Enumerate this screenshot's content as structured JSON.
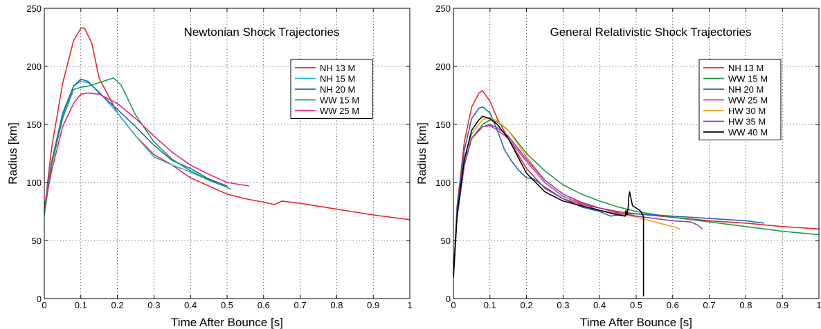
{
  "chart_data": [
    {
      "type": "line",
      "title": "Newtonian Shock Trajectories",
      "xlabel": "Time After Bounce [s]",
      "ylabel": "Radius [km]",
      "xlim": [
        0,
        1
      ],
      "ylim": [
        0,
        250
      ],
      "xticks": [
        "0",
        "0.1",
        "0.2",
        "0.3",
        "0.4",
        "0.5",
        "0.6",
        "0.7",
        "0.8",
        "0.9",
        "1"
      ],
      "yticks": [
        "0",
        "50",
        "100",
        "150",
        "200",
        "250"
      ],
      "grid": true,
      "legend_position": "upper right",
      "series": [
        {
          "name": "NH 13 M",
          "color": "#e8262a",
          "x": [
            0.0,
            0.02,
            0.05,
            0.08,
            0.1,
            0.11,
            0.13,
            0.15,
            0.18,
            0.2,
            0.25,
            0.3,
            0.35,
            0.4,
            0.45,
            0.5,
            0.55,
            0.6,
            0.63,
            0.65,
            0.7,
            0.8,
            0.9,
            1.0
          ],
          "y": [
            75,
            130,
            185,
            222,
            233,
            233,
            220,
            190,
            172,
            160,
            140,
            124,
            115,
            104,
            97,
            90,
            86,
            83,
            81,
            84,
            82,
            77,
            72,
            68
          ]
        },
        {
          "name": "NH 15 M",
          "color": "#1fb2e6",
          "x": [
            0.0,
            0.02,
            0.05,
            0.08,
            0.1,
            0.12,
            0.15,
            0.2,
            0.25,
            0.3,
            0.35,
            0.4,
            0.45,
            0.5
          ],
          "y": [
            78,
            118,
            160,
            183,
            187,
            186,
            178,
            160,
            140,
            122,
            115,
            109,
            102,
            96
          ]
        },
        {
          "name": "NH 20 M",
          "color": "#2166b3",
          "x": [
            0.0,
            0.02,
            0.05,
            0.08,
            0.1,
            0.12,
            0.15,
            0.2,
            0.25,
            0.3,
            0.35,
            0.4,
            0.45,
            0.5
          ],
          "y": [
            76,
            117,
            158,
            183,
            189,
            187,
            177,
            163,
            148,
            132,
            119,
            112,
            103,
            97
          ]
        },
        {
          "name": "WW 15 M",
          "color": "#1e9b4a",
          "x": [
            0.0,
            0.02,
            0.05,
            0.08,
            0.1,
            0.12,
            0.15,
            0.19,
            0.21,
            0.25,
            0.3,
            0.35,
            0.4,
            0.45,
            0.5,
            0.51
          ],
          "y": [
            72,
            115,
            155,
            180,
            182,
            183,
            186,
            190,
            184,
            158,
            135,
            120,
            110,
            102,
            96,
            94
          ]
        },
        {
          "name": "WW 25 M",
          "color": "#e8207a",
          "x": [
            0.0,
            0.02,
            0.05,
            0.08,
            0.1,
            0.12,
            0.15,
            0.2,
            0.25,
            0.3,
            0.35,
            0.4,
            0.45,
            0.5,
            0.56
          ],
          "y": [
            78,
            110,
            148,
            168,
            176,
            177,
            176,
            168,
            155,
            140,
            126,
            115,
            107,
            100,
            97
          ]
        }
      ]
    },
    {
      "type": "line",
      "title": "General Relativistic Shock Trajectories",
      "xlabel": "Time After Bounce [s]",
      "ylabel": "Radius [km]",
      "xlim": [
        0,
        1
      ],
      "ylim": [
        0,
        250
      ],
      "xticks": [
        "0",
        "0.1",
        "0.2",
        "0.3",
        "0.4",
        "0.5",
        "0.6",
        "0.7",
        "0.8",
        "0.9",
        "1"
      ],
      "yticks": [
        "0",
        "50",
        "100",
        "150",
        "200",
        "250"
      ],
      "grid": true,
      "legend_position": "upper right",
      "series": [
        {
          "name": "NH 13 M",
          "color": "#e8262a",
          "x": [
            0.0,
            0.01,
            0.03,
            0.05,
            0.07,
            0.08,
            0.1,
            0.12,
            0.15,
            0.2,
            0.25,
            0.3,
            0.35,
            0.4,
            0.45,
            0.5,
            0.6,
            0.7,
            0.8,
            0.9,
            1.0
          ],
          "y": [
            20,
            80,
            135,
            165,
            177,
            179,
            170,
            155,
            138,
            112,
            95,
            86,
            81,
            78,
            75,
            73,
            70,
            67,
            65,
            62,
            60
          ]
        },
        {
          "name": "WW 15 M",
          "color": "#1e9b4a",
          "x": [
            0.0,
            0.01,
            0.03,
            0.05,
            0.08,
            0.1,
            0.12,
            0.15,
            0.2,
            0.25,
            0.3,
            0.35,
            0.4,
            0.45,
            0.5,
            0.6,
            0.7,
            0.8,
            0.9,
            1.0
          ],
          "y": [
            20,
            75,
            118,
            138,
            150,
            154,
            152,
            145,
            125,
            110,
            98,
            90,
            84,
            79,
            75,
            70,
            66,
            62,
            58,
            55
          ]
        },
        {
          "name": "NH 20 M",
          "color": "#2166b3",
          "x": [
            0.0,
            0.01,
            0.03,
            0.05,
            0.07,
            0.08,
            0.1,
            0.12,
            0.14,
            0.16,
            0.18,
            0.2,
            0.22,
            0.25,
            0.3,
            0.35,
            0.4,
            0.43,
            0.47,
            0.5,
            0.6,
            0.7,
            0.8,
            0.85
          ],
          "y": [
            20,
            78,
            128,
            155,
            164,
            165,
            160,
            145,
            128,
            118,
            110,
            104,
            103,
            96,
            86,
            79,
            75,
            71,
            73,
            73,
            71,
            69,
            67,
            65
          ]
        },
        {
          "name": "WW 25 M",
          "color": "#c83aa8",
          "x": [
            0.0,
            0.01,
            0.03,
            0.05,
            0.08,
            0.1,
            0.12,
            0.15,
            0.2,
            0.25,
            0.3,
            0.35,
            0.37,
            0.38,
            0.4,
            0.45,
            0.5
          ],
          "y": [
            20,
            70,
            115,
            138,
            148,
            149,
            145,
            138,
            118,
            100,
            88,
            82,
            81,
            78,
            76,
            73,
            71
          ]
        },
        {
          "name": "HW 30 M",
          "color": "#f0a21a",
          "x": [
            0.0,
            0.01,
            0.03,
            0.05,
            0.08,
            0.1,
            0.12,
            0.15,
            0.2,
            0.25,
            0.3,
            0.35,
            0.4,
            0.45,
            0.5,
            0.55,
            0.6,
            0.62
          ],
          "y": [
            20,
            72,
            118,
            142,
            154,
            156,
            153,
            145,
            122,
            102,
            90,
            83,
            78,
            74,
            70,
            66,
            62,
            60
          ]
        },
        {
          "name": "HW 35 M",
          "color": "#8e3fa0",
          "x": [
            0.0,
            0.01,
            0.03,
            0.05,
            0.08,
            0.1,
            0.12,
            0.15,
            0.2,
            0.25,
            0.3,
            0.35,
            0.4,
            0.45,
            0.5,
            0.55,
            0.6,
            0.65,
            0.67,
            0.68
          ],
          "y": [
            20,
            70,
            115,
            138,
            148,
            150,
            147,
            140,
            120,
            102,
            90,
            83,
            78,
            74,
            71,
            69,
            67,
            66,
            63,
            60
          ]
        },
        {
          "name": "WW 40 M",
          "color": "#000000",
          "x": [
            0.0,
            0.01,
            0.03,
            0.05,
            0.07,
            0.08,
            0.1,
            0.12,
            0.15,
            0.2,
            0.25,
            0.3,
            0.35,
            0.4,
            0.45,
            0.47,
            0.472,
            0.475,
            0.478,
            0.48,
            0.482,
            0.49,
            0.5,
            0.51,
            0.515,
            0.518,
            0.52,
            0.52
          ],
          "y": [
            18,
            72,
            120,
            145,
            154,
            157,
            155,
            150,
            138,
            108,
            92,
            84,
            80,
            76,
            72,
            71,
            76,
            72,
            78,
            88,
            92,
            80,
            78,
            76,
            74,
            72,
            70,
            2
          ]
        }
      ]
    }
  ]
}
